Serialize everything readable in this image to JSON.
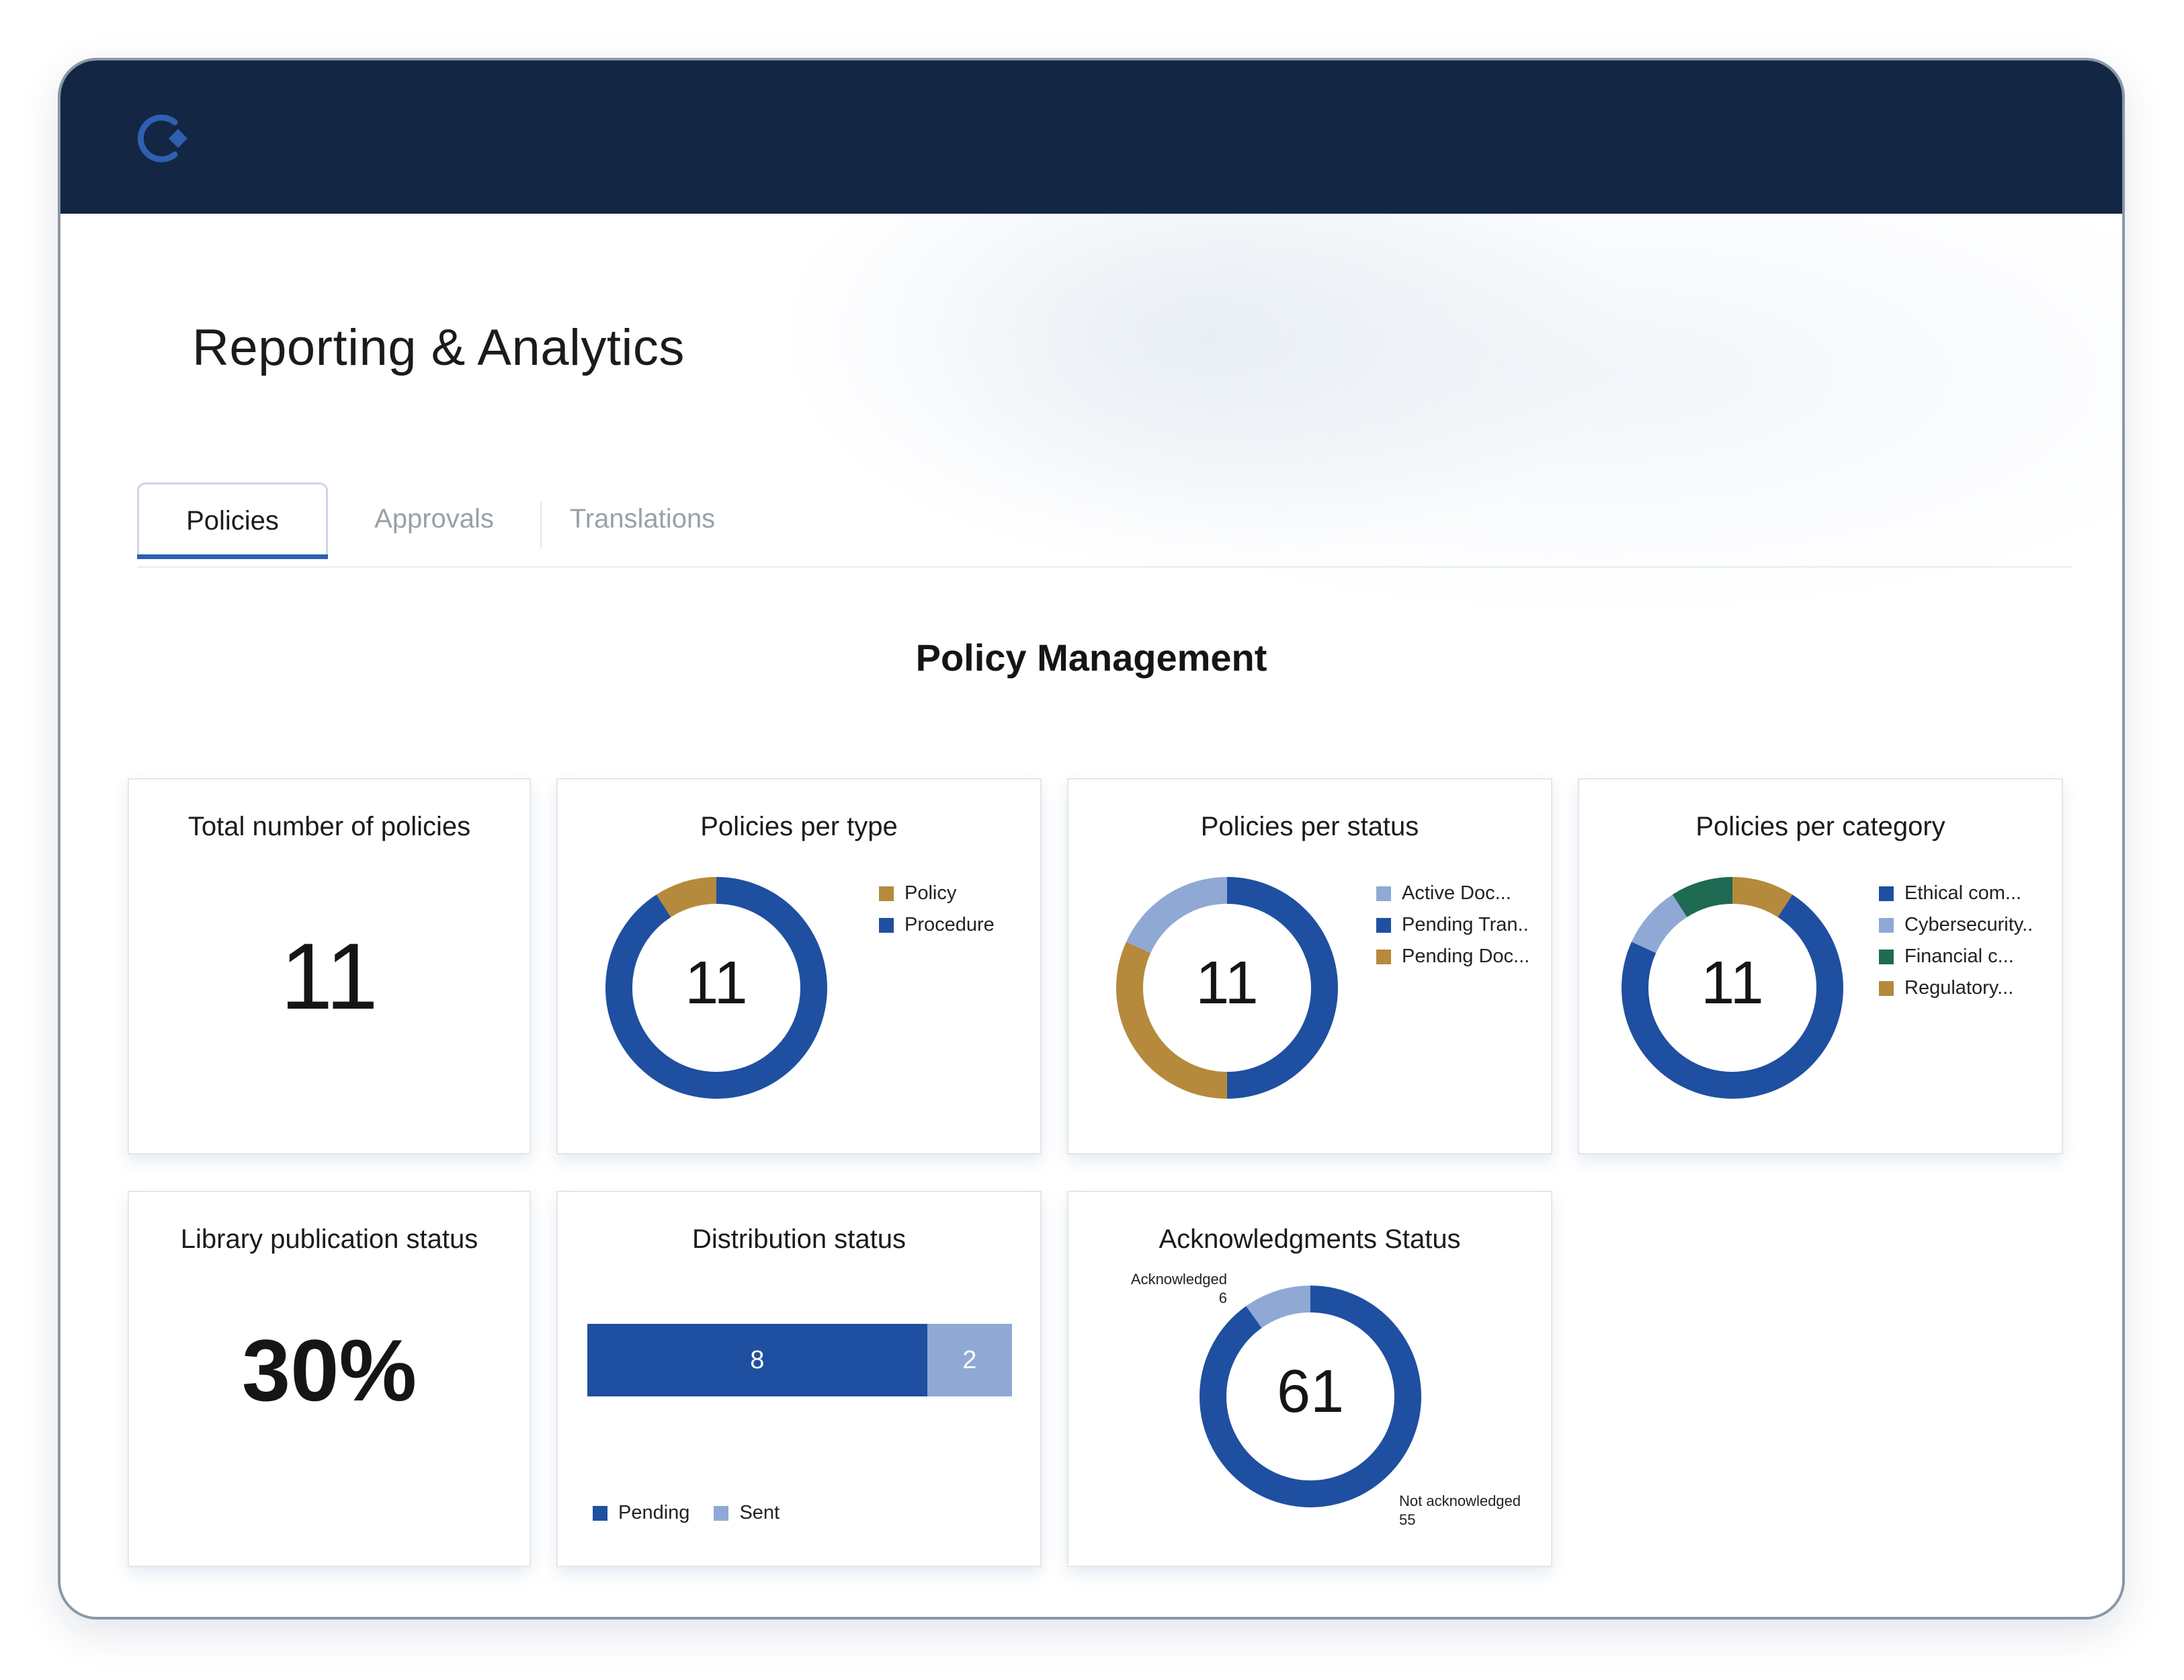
{
  "app": {
    "page_title": "Reporting & Analytics",
    "tabs": [
      {
        "label": "Policies",
        "active": true
      },
      {
        "label": "Approvals",
        "active": false
      },
      {
        "label": "Translations",
        "active": false
      }
    ],
    "section_title": "Policy Management",
    "colors": {
      "header": "#132644",
      "dark_blue": "#1f4fa0",
      "light_blue": "#8fa9d4",
      "gold": "#b58a3c",
      "green": "#1f6a52"
    }
  },
  "cards": {
    "total_policies": {
      "title": "Total number of policies",
      "value": "11"
    },
    "per_type": {
      "title": "Policies per type",
      "center": "11",
      "legend": [
        {
          "label": "Policy",
          "color": "#b58a3c"
        },
        {
          "label": "Procedure",
          "color": "#1f4fa0"
        }
      ]
    },
    "per_status": {
      "title": "Policies per status",
      "center": "11",
      "legend": [
        {
          "label": "Active Doc...",
          "color": "#8fa9d4"
        },
        {
          "label": "Pending Tran..",
          "color": "#1f4fa0"
        },
        {
          "label": "Pending Doc...",
          "color": "#b58a3c"
        }
      ]
    },
    "per_category": {
      "title": "Policies per category",
      "center": "11",
      "legend": [
        {
          "label": "Ethical com...",
          "color": "#1f4fa0"
        },
        {
          "label": "Cybersecurity..",
          "color": "#8fa9d4"
        },
        {
          "label": "Financial c...",
          "color": "#1f6a52"
        },
        {
          "label": "Regulatory...",
          "color": "#b58a3c"
        }
      ]
    },
    "library": {
      "title": "Library publication status",
      "value": "30%"
    },
    "distribution": {
      "title": "Distribution status",
      "legend": [
        {
          "label": "Pending",
          "color": "#1f4fa0"
        },
        {
          "label": "Sent",
          "color": "#8fa9d4"
        }
      ]
    },
    "acknowledgments": {
      "title": "Acknowledgments Status",
      "center": "61",
      "acknowledged_label": "Acknowledged",
      "acknowledged_value": "6",
      "not_acknowledged_label": "Not acknowledged",
      "not_acknowledged_value": "55"
    }
  },
  "chart_data": [
    {
      "type": "pie",
      "title": "Policies per type",
      "categories": [
        "Procedure",
        "Policy"
      ],
      "values": [
        10,
        1
      ],
      "colors": [
        "#1f4fa0",
        "#b58a3c"
      ]
    },
    {
      "type": "pie",
      "title": "Policies per status",
      "categories": [
        "Pending Tran..",
        "Pending Doc...",
        "Active Doc..."
      ],
      "values": [
        5.5,
        3.5,
        2
      ],
      "colors": [
        "#1f4fa0",
        "#b58a3c",
        "#8fa9d4"
      ]
    },
    {
      "type": "pie",
      "title": "Policies per category",
      "categories": [
        "Regulatory...",
        "Ethical com...",
        "Cybersecurity..",
        "Financial c..."
      ],
      "values": [
        1,
        8,
        1,
        1
      ],
      "colors": [
        "#b58a3c",
        "#1f4fa0",
        "#8fa9d4",
        "#1f6a52"
      ]
    },
    {
      "type": "bar",
      "title": "Distribution status",
      "orientation": "horizontal",
      "stacked": true,
      "series": [
        {
          "name": "Pending",
          "values": [
            8
          ],
          "color": "#1f4fa0"
        },
        {
          "name": "Sent",
          "values": [
            2
          ],
          "color": "#8fa9d4"
        }
      ]
    },
    {
      "type": "pie",
      "title": "Acknowledgments Status",
      "categories": [
        "Not acknowledged",
        "Acknowledged"
      ],
      "values": [
        55,
        6
      ],
      "colors": [
        "#1f4fa0",
        "#8fa9d4"
      ]
    }
  ]
}
